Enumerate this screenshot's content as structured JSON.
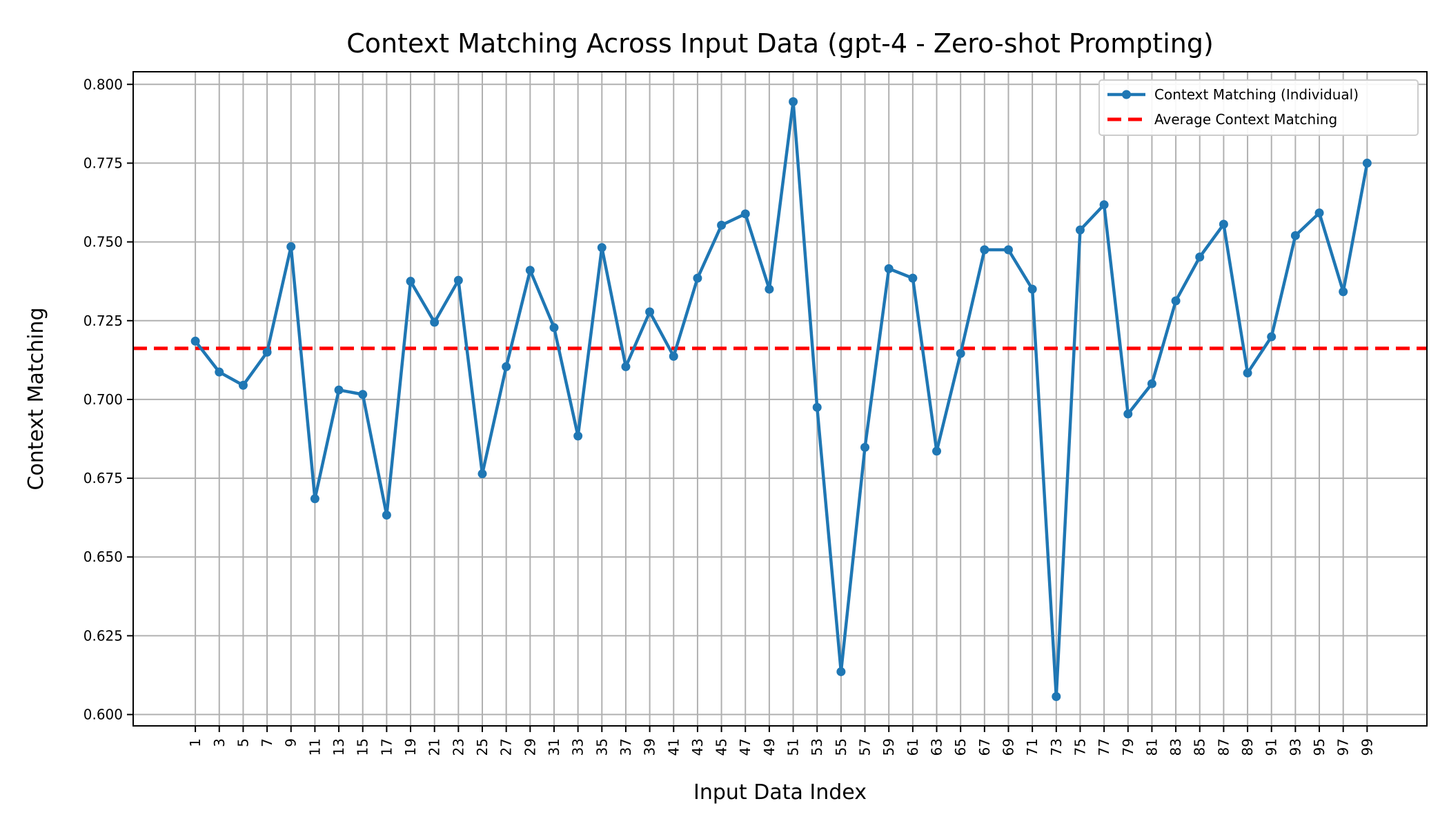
{
  "chart_data": {
    "type": "line",
    "title": "Context Matching Across Input Data (gpt-4 - Zero-shot Prompting)",
    "xlabel": "Input Data Index",
    "ylabel": "Context Matching",
    "x": [
      1,
      3,
      5,
      7,
      9,
      11,
      13,
      15,
      17,
      19,
      21,
      23,
      25,
      27,
      29,
      31,
      33,
      35,
      37,
      39,
      41,
      43,
      45,
      47,
      49,
      51,
      53,
      55,
      57,
      59,
      61,
      63,
      65,
      67,
      69,
      71,
      73,
      75,
      77,
      79,
      81,
      83,
      85,
      87,
      89,
      91,
      93,
      95,
      97,
      99
    ],
    "xticks": [
      "1",
      "3",
      "5",
      "7",
      "9",
      "11",
      "13",
      "15",
      "17",
      "19",
      "21",
      "23",
      "25",
      "27",
      "29",
      "31",
      "33",
      "35",
      "37",
      "39",
      "41",
      "43",
      "45",
      "47",
      "49",
      "51",
      "53",
      "55",
      "57",
      "59",
      "61",
      "63",
      "65",
      "67",
      "69",
      "71",
      "73",
      "75",
      "77",
      "79",
      "81",
      "83",
      "85",
      "87",
      "89",
      "91",
      "93",
      "95",
      "97",
      "99"
    ],
    "xlim": [
      -4.2,
      104
    ],
    "ylim": [
      0.5964,
      0.804
    ],
    "yticks": [
      "0.600",
      "0.625",
      "0.650",
      "0.675",
      "0.700",
      "0.725",
      "0.750",
      "0.775",
      "0.800"
    ],
    "ytick_values": [
      0.6,
      0.625,
      0.65,
      0.675,
      0.7,
      0.725,
      0.75,
      0.775,
      0.8
    ],
    "series": [
      {
        "name": "Context Matching (Individual)",
        "color": "#1f77b4",
        "values": [
          0.7185,
          0.7087,
          0.7045,
          0.715,
          0.7485,
          0.6685,
          0.703,
          0.7016,
          0.6633,
          0.7375,
          0.7245,
          0.7378,
          0.6764,
          0.7104,
          0.741,
          0.7228,
          0.6884,
          0.7482,
          0.7104,
          0.7278,
          0.7137,
          0.7385,
          0.7553,
          0.7589,
          0.735,
          0.7945,
          0.6975,
          0.6136,
          0.6848,
          0.7415,
          0.7385,
          0.6836,
          0.7146,
          0.7475,
          0.7475,
          0.735,
          0.6057,
          0.7538,
          0.7618,
          0.6954,
          0.705,
          0.7313,
          0.7452,
          0.7556,
          0.7084,
          0.7199,
          0.752,
          0.7592,
          0.7342,
          0.775
        ]
      }
    ],
    "reference_lines": [
      {
        "name": "Average Context Matching",
        "color": "#ff0000",
        "style": "dashed",
        "value": 0.7162
      }
    ],
    "grid": true,
    "legend_position": "top-right"
  }
}
